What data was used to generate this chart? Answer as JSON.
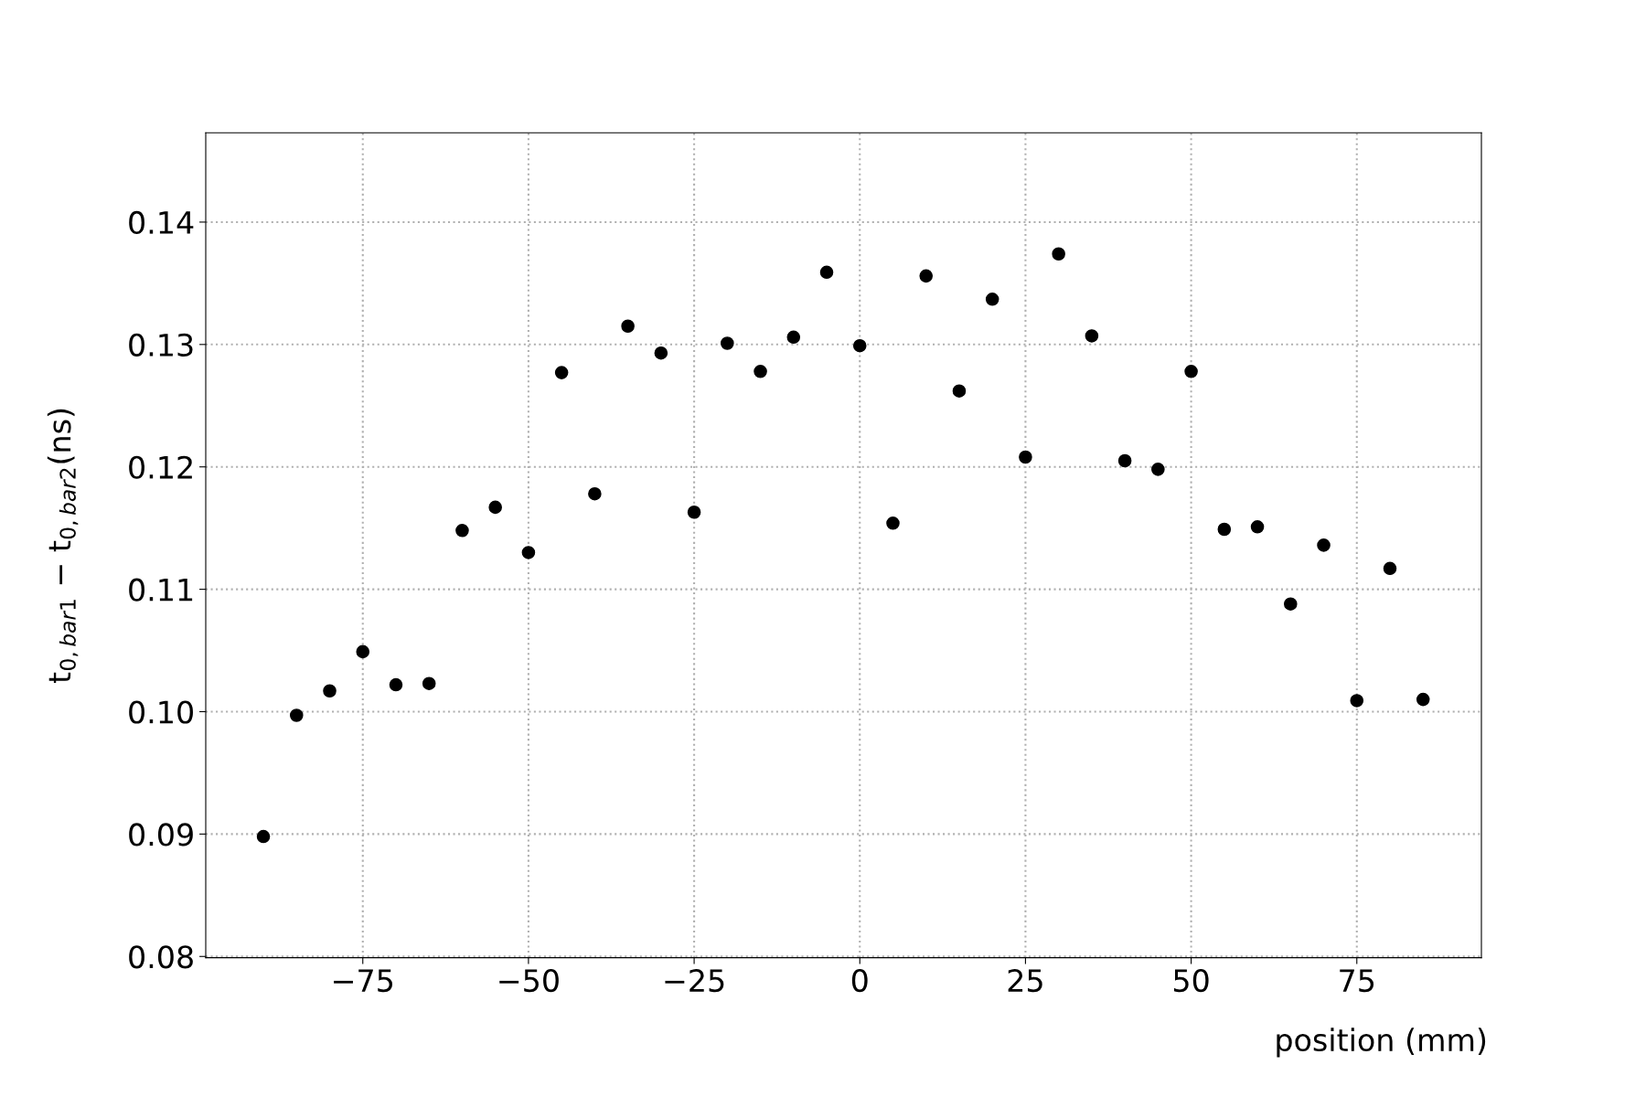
{
  "chart_data": {
    "type": "scatter",
    "xlabel": "position (mm)",
    "ylabel": "t$_{0,bar1}$ − t$_{0,bar2}$(ns)",
    "x": [
      -90,
      -85,
      -80,
      -75,
      -70,
      -65,
      -60,
      -55,
      -50,
      -45,
      -40,
      -35,
      -30,
      -25,
      -20,
      -15,
      -10,
      -5,
      0,
      5,
      10,
      15,
      20,
      25,
      30,
      35,
      40,
      45,
      50,
      55,
      60,
      65,
      70,
      75,
      80,
      85
    ],
    "series": [
      {
        "color": "#000000",
        "values": [
          0.0898,
          0.0997,
          0.1017,
          0.1049,
          0.1022,
          0.1023,
          0.1148,
          0.1167,
          0.113,
          0.1277,
          0.1178,
          0.1315,
          0.1293,
          0.1163,
          0.1301,
          0.1278,
          0.1306,
          0.1359,
          0.1299,
          0.1154,
          0.1356,
          0.1262,
          0.1337,
          0.1208,
          0.1374,
          0.1307,
          0.1205,
          0.1198,
          0.1278,
          0.1149,
          0.1151,
          0.1088,
          0.1136,
          0.1009,
          0.1117,
          0.101
        ]
      }
    ],
    "xlim": [
      -98.7,
      93.8
    ],
    "ylim": [
      0.0799,
      0.1473
    ],
    "xticks": [
      -75,
      -50,
      -25,
      0,
      25,
      50,
      75
    ],
    "yticks": [
      {
        "value": 0.08,
        "label": "0.08"
      },
      {
        "value": 0.09,
        "label": "0.09"
      },
      {
        "value": 0.1,
        "label": "0.10"
      },
      {
        "value": 0.11,
        "label": "0.11"
      },
      {
        "value": 0.12,
        "label": "0.12"
      },
      {
        "value": 0.13,
        "label": "0.13"
      },
      {
        "value": 0.14,
        "label": "0.14"
      }
    ],
    "grid": true,
    "marker": "circle",
    "legend": false
  }
}
